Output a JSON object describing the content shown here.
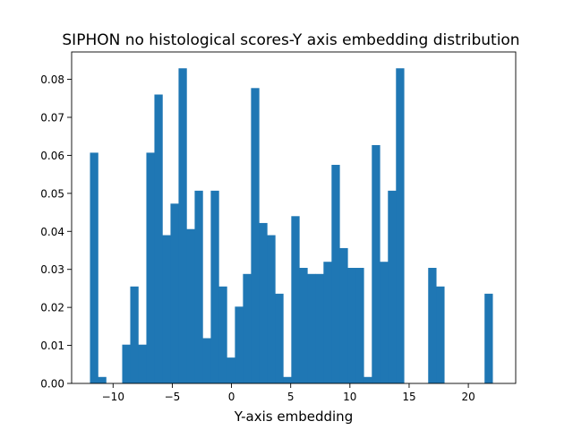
{
  "chart_data": {
    "type": "bar",
    "title": "SIPHON no histological scores-Y axis embedding distribution",
    "xlabel": "Y-axis embedding",
    "ylabel": "",
    "xlim": [
      -13.5,
      24.0
    ],
    "ylim": [
      0,
      0.0872
    ],
    "bin_start": -11.95,
    "bin_width": 0.68,
    "values": [
      0.0607,
      0.0017,
      0,
      0,
      0.0102,
      0.0255,
      0.0102,
      0.0607,
      0.076,
      0.039,
      0.0473,
      0.0829,
      0.0406,
      0.0507,
      0.0119,
      0.0507,
      0.0255,
      0.0068,
      0.0202,
      0.0288,
      0.0777,
      0.0422,
      0.039,
      0.0236,
      0.0017,
      0.044,
      0.0304,
      0.0288,
      0.0288,
      0.032,
      0.0575,
      0.0356,
      0.0304,
      0.0304,
      0.0017,
      0.0627,
      0.032,
      0.0507,
      0.0829,
      0,
      0,
      0,
      0.0304,
      0.0255,
      0,
      0,
      0,
      0,
      0,
      0.0236
    ],
    "x_ticks": [
      -10,
      -5,
      0,
      5,
      10,
      15,
      20
    ],
    "x_tick_labels": [
      "−10",
      "−5",
      "0",
      "5",
      "10",
      "15",
      "20"
    ],
    "y_ticks": [
      0.0,
      0.01,
      0.02,
      0.03,
      0.04,
      0.05,
      0.06,
      0.07,
      0.08
    ],
    "y_tick_labels": [
      "0.00",
      "0.01",
      "0.02",
      "0.03",
      "0.04",
      "0.05",
      "0.06",
      "0.07",
      "0.08"
    ],
    "bar_color": "#1f77b4",
    "grid": false,
    "legend": "none"
  }
}
